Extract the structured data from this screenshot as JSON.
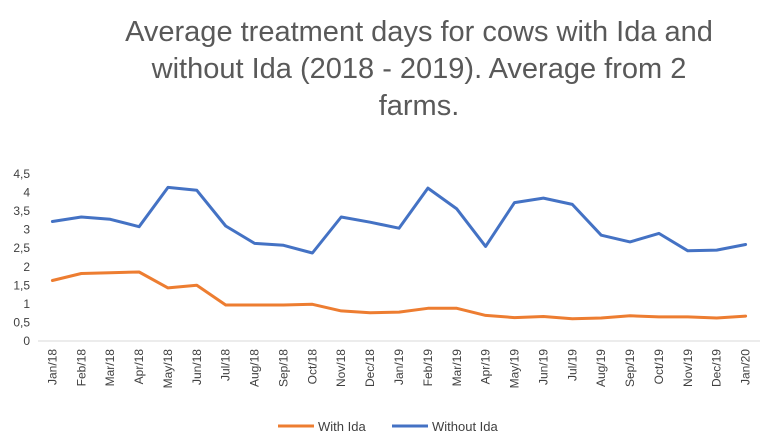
{
  "chart_data": {
    "type": "line",
    "title": "Average treatment days for cows with Ida and without Ida (2018 - 2019). Average from 2 farms.",
    "xlabel": "",
    "ylabel": "",
    "ylim": [
      0,
      4.5
    ],
    "yticks": [
      "0",
      "0,5",
      "1",
      "1,5",
      "2",
      "2,5",
      "3",
      "3,5",
      "4",
      "4,5"
    ],
    "grid": false,
    "legend_position": "bottom",
    "categories": [
      "Jan/18",
      "Feb/18",
      "Mar/18",
      "Apr/18",
      "May/18",
      "Jun/18",
      "Jul/18",
      "Aug/18",
      "Sep/18",
      "Oct/18",
      "Nov/18",
      "Dec/18",
      "Jan/19",
      "Feb/19",
      "Mar/19",
      "Apr/19",
      "May/19",
      "Jun/19",
      "Jul/19",
      "Aug/19",
      "Sep/19",
      "Oct/19",
      "Nov/19",
      "Dec/19",
      "Jan/20"
    ],
    "series": [
      {
        "name": "With Ida",
        "color": "#ED7D31",
        "values": [
          1.63,
          1.82,
          1.84,
          1.86,
          1.43,
          1.5,
          0.97,
          0.97,
          0.97,
          0.99,
          0.81,
          0.76,
          0.78,
          0.88,
          0.88,
          0.69,
          0.63,
          0.66,
          0.6,
          0.62,
          0.68,
          0.65,
          0.65,
          0.62,
          0.67
        ]
      },
      {
        "name": "Without Ida",
        "color": "#4472C4",
        "values": [
          3.22,
          3.34,
          3.28,
          3.08,
          4.14,
          4.06,
          3.1,
          2.63,
          2.58,
          2.37,
          3.34,
          3.2,
          3.04,
          4.12,
          3.56,
          2.55,
          3.73,
          3.85,
          3.68,
          2.85,
          2.67,
          2.9,
          2.43,
          2.45,
          2.6
        ]
      }
    ]
  }
}
